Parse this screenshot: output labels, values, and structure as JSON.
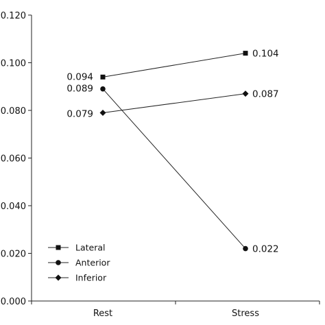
{
  "chart_data": {
    "type": "line",
    "categories": [
      "Rest",
      "Stress"
    ],
    "ylim": [
      0,
      0.12
    ],
    "yticks": [
      "0.000",
      "0.020",
      "0.040",
      "0.060",
      "0.080",
      "0.100",
      "0.120"
    ],
    "ytick_values": [
      0,
      0.02,
      0.04,
      0.06,
      0.08,
      0.1,
      0.12
    ],
    "grid": false,
    "legend_position": "bottom-left",
    "series": [
      {
        "name": "Lateral",
        "marker": "square",
        "values": [
          0.094,
          0.104
        ],
        "labels": [
          "0.094",
          "0.104"
        ]
      },
      {
        "name": "Anterior",
        "marker": "circle",
        "values": [
          0.089,
          0.022
        ],
        "labels": [
          "0.089",
          "0.022"
        ]
      },
      {
        "name": "Inferior",
        "marker": "diamond",
        "values": [
          0.079,
          0.087
        ],
        "labels": [
          "0.079",
          "0.087"
        ]
      }
    ]
  }
}
